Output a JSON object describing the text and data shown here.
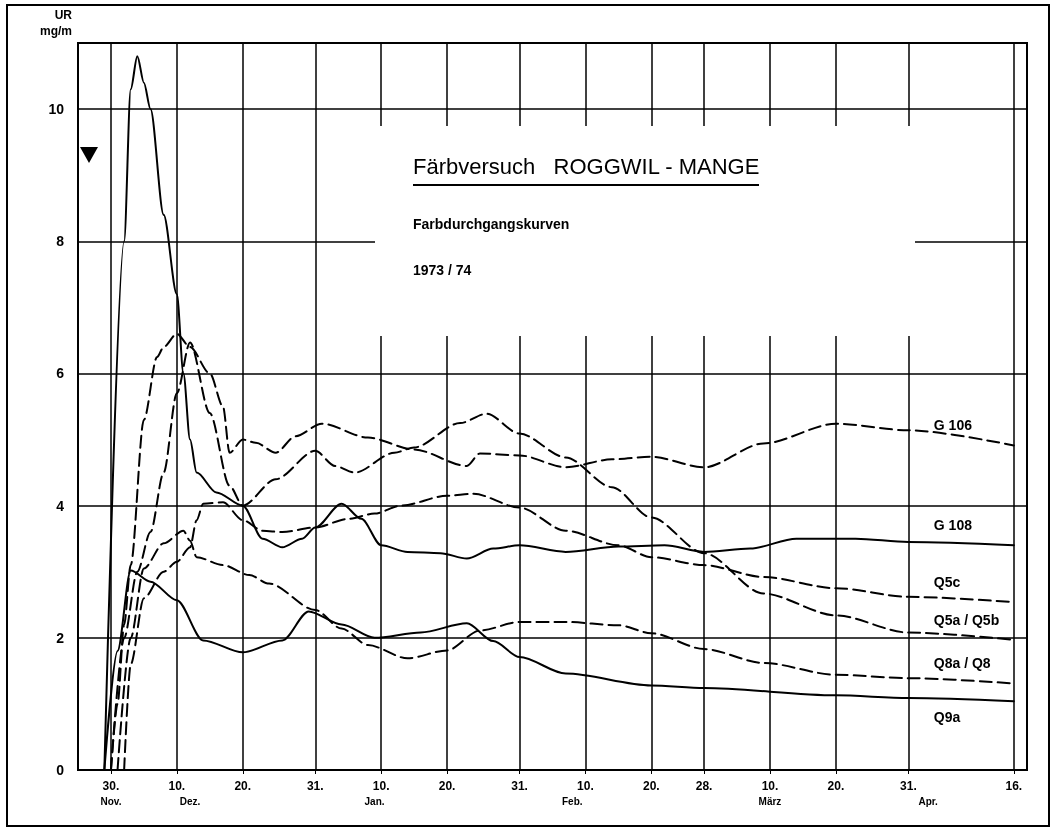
{
  "chart_data": {
    "type": "line",
    "title": "Färbversuch   ROGGWIL - MANGE",
    "subtitle": "Farbdurchgangskurven",
    "annotations": [
      "1973 / 74"
    ],
    "ylabel": "UR\nmg/m",
    "xlim": [
      "1973-11-25",
      "1974-04-18"
    ],
    "ylim": [
      0,
      11
    ],
    "xticks": [
      {
        "value": "1973-11-30",
        "label": "30."
      },
      {
        "value": "1973-12-10",
        "label": "10."
      },
      {
        "value": "1973-12-20",
        "label": "20."
      },
      {
        "value": "1973-12-31",
        "label": "31."
      },
      {
        "value": "1974-01-10",
        "label": "10."
      },
      {
        "value": "1974-01-20",
        "label": "20."
      },
      {
        "value": "1974-01-31",
        "label": "31."
      },
      {
        "value": "1974-02-10",
        "label": "10."
      },
      {
        "value": "1974-02-20",
        "label": "20."
      },
      {
        "value": "1974-02-28",
        "label": "28."
      },
      {
        "value": "1974-03-10",
        "label": "10."
      },
      {
        "value": "1974-03-20",
        "label": "20."
      },
      {
        "value": "1974-03-31",
        "label": "31."
      },
      {
        "value": "1974-04-16",
        "label": "16."
      }
    ],
    "x2lim": [
      "1973-11-25",
      "1974-04-18"
    ],
    "x2ticks": [
      {
        "value": "1973-11-30",
        "label": "Nov."
      },
      {
        "value": "1973-12-12",
        "label": "Dez."
      },
      {
        "value": "1974-01-09",
        "label": "Jan."
      },
      {
        "value": "1974-02-08",
        "label": "Feb."
      },
      {
        "value": "1974-03-10",
        "label": "März"
      },
      {
        "value": "1974-04-03",
        "label": "Apr."
      }
    ],
    "yticks": [
      0,
      2,
      4,
      6,
      8,
      10
    ],
    "grid": true,
    "marker": "none",
    "series": [
      {
        "name": "G 106",
        "color": "#000000",
        "line_style": "dashed",
        "x": [
          "1973-11-30",
          "1973-12-01",
          "1973-12-02",
          "1973-12-03",
          "1973-12-05",
          "1973-12-07",
          "1973-12-08",
          "1973-12-10",
          "1973-12-12",
          "1973-12-15",
          "1973-12-17",
          "1973-12-18",
          "1973-12-20",
          "1973-12-22",
          "1973-12-25",
          "1973-12-28",
          "1974-01-01",
          "1974-01-08",
          "1974-01-15",
          "1974-01-23",
          "1974-01-25",
          "1974-01-31",
          "1974-02-07",
          "1974-02-14",
          "1974-02-20",
          "1974-02-28",
          "1974-03-09",
          "1974-03-20",
          "1974-03-31",
          "1974-04-16"
        ],
        "values": [
          0,
          1.0,
          2.2,
          3.1,
          5.3,
          6.25,
          6.4,
          6.6,
          6.4,
          6.0,
          5.5,
          4.8,
          5.0,
          4.95,
          4.8,
          5.05,
          5.24,
          5.03,
          4.85,
          4.6,
          4.79,
          4.76,
          4.58,
          4.7,
          4.74,
          4.58,
          4.94,
          5.24,
          5.14,
          4.91
        ]
      },
      {
        "name": "G 108",
        "color": "#000000",
        "line_style": "solid",
        "x": [
          "1973-11-29",
          "1973-12-02",
          "1973-12-03",
          "1973-12-04",
          "1973-12-05",
          "1973-12-06",
          "1973-12-08",
          "1973-12-10",
          "1973-12-11",
          "1973-12-12",
          "1973-12-13",
          "1973-12-16",
          "1973-12-20",
          "1973-12-23",
          "1973-12-26",
          "1973-12-29",
          "1973-12-31",
          "1974-01-04",
          "1974-01-07",
          "1974-01-10",
          "1974-01-14",
          "1974-01-19",
          "1974-01-23",
          "1974-01-27",
          "1974-01-31",
          "1974-02-07",
          "1974-02-15",
          "1974-02-22",
          "1974-02-28",
          "1974-03-07",
          "1974-03-14",
          "1974-03-23",
          "1974-03-31",
          "1974-04-16"
        ],
        "values": [
          0,
          8.0,
          10.3,
          10.8,
          10.4,
          10.0,
          8.4,
          7.2,
          6.0,
          5.0,
          4.5,
          4.2,
          4.0,
          3.5,
          3.37,
          3.5,
          3.67,
          4.03,
          3.8,
          3.4,
          3.3,
          3.28,
          3.2,
          3.35,
          3.4,
          3.3,
          3.38,
          3.4,
          3.3,
          3.35,
          3.5,
          3.5,
          3.45,
          3.4
        ]
      },
      {
        "name": "Q5c",
        "color": "#000000",
        "line_style": "dashed",
        "x": [
          "1973-12-02",
          "1973-12-03",
          "1973-12-05",
          "1973-12-08",
          "1973-12-10",
          "1973-12-12",
          "1973-12-13",
          "1973-12-14",
          "1973-12-17",
          "1973-12-20",
          "1973-12-23",
          "1973-12-26",
          "1973-12-31",
          "1974-01-05",
          "1974-01-09",
          "1974-01-13",
          "1974-01-20",
          "1974-01-24",
          "1974-01-31",
          "1974-02-07",
          "1974-02-15",
          "1974-02-20",
          "1974-02-28",
          "1974-03-09",
          "1974-03-20",
          "1974-03-31",
          "1974-04-16"
        ],
        "values": [
          0,
          1.6,
          2.6,
          3.0,
          3.15,
          3.37,
          3.78,
          4.03,
          4.05,
          3.78,
          3.62,
          3.6,
          3.67,
          3.8,
          3.88,
          4.0,
          4.15,
          4.18,
          3.97,
          3.62,
          3.4,
          3.22,
          3.1,
          2.92,
          2.75,
          2.62,
          2.54
        ]
      },
      {
        "name": "Q5a / Q5b",
        "color": "#000000",
        "line_style": "dashed",
        "x": [
          "1973-11-30",
          "1973-12-02",
          "1973-12-04",
          "1973-12-06",
          "1973-12-08",
          "1973-12-10",
          "1973-12-12",
          "1973-12-15",
          "1973-12-18",
          "1973-12-20",
          "1973-12-25",
          "1973-12-31",
          "1974-01-03",
          "1974-01-06",
          "1974-01-12",
          "1974-01-15",
          "1974-01-22",
          "1974-01-26",
          "1974-01-31",
          "1974-02-07",
          "1974-02-14",
          "1974-02-20",
          "1974-02-28",
          "1974-03-09",
          "1974-03-20",
          "1974-03-31",
          "1974-04-16"
        ],
        "values": [
          0,
          2.0,
          3.0,
          3.6,
          4.5,
          5.7,
          6.47,
          5.4,
          4.3,
          4.0,
          4.4,
          4.83,
          4.6,
          4.5,
          4.8,
          4.88,
          5.25,
          5.39,
          5.09,
          4.73,
          4.28,
          3.82,
          3.28,
          2.67,
          2.34,
          2.08,
          1.97
        ]
      },
      {
        "name": "Q8a / Q8",
        "color": "#000000",
        "line_style": "dashed",
        "x": [
          "1973-12-01",
          "1973-12-03",
          "1973-12-05",
          "1973-12-08",
          "1973-12-11",
          "1973-12-12",
          "1973-12-13",
          "1973-12-17",
          "1973-12-21",
          "1973-12-24",
          "1973-12-31",
          "1974-01-04",
          "1974-01-08",
          "1974-01-14",
          "1974-01-20",
          "1974-01-25",
          "1974-01-31",
          "1974-02-07",
          "1974-02-15",
          "1974-02-20",
          "1974-02-28",
          "1974-03-09",
          "1974-03-20",
          "1974-03-31",
          "1974-04-16"
        ],
        "values": [
          0,
          2.0,
          3.05,
          3.43,
          3.62,
          3.47,
          3.22,
          3.1,
          2.95,
          2.82,
          2.42,
          2.14,
          1.89,
          1.69,
          1.81,
          2.11,
          2.24,
          2.24,
          2.19,
          2.07,
          1.83,
          1.62,
          1.44,
          1.39,
          1.31
        ]
      },
      {
        "name": "Q9a",
        "color": "#000000",
        "line_style": "solid",
        "x": [
          "1973-11-29",
          "1973-12-01",
          "1973-12-03",
          "1973-12-06",
          "1973-12-10",
          "1973-12-14",
          "1973-12-20",
          "1973-12-26",
          "1973-12-30",
          "1974-01-04",
          "1974-01-09",
          "1974-01-16",
          "1974-01-23",
          "1974-01-27",
          "1974-01-31",
          "1974-02-07",
          "1974-02-20",
          "1974-02-28",
          "1974-03-20",
          "1974-03-31",
          "1974-04-16"
        ],
        "values": [
          0,
          1.8,
          3.02,
          2.85,
          2.57,
          1.96,
          1.78,
          1.96,
          2.4,
          2.2,
          2.0,
          2.08,
          2.22,
          1.95,
          1.71,
          1.46,
          1.28,
          1.24,
          1.13,
          1.09,
          1.04
        ]
      }
    ]
  }
}
